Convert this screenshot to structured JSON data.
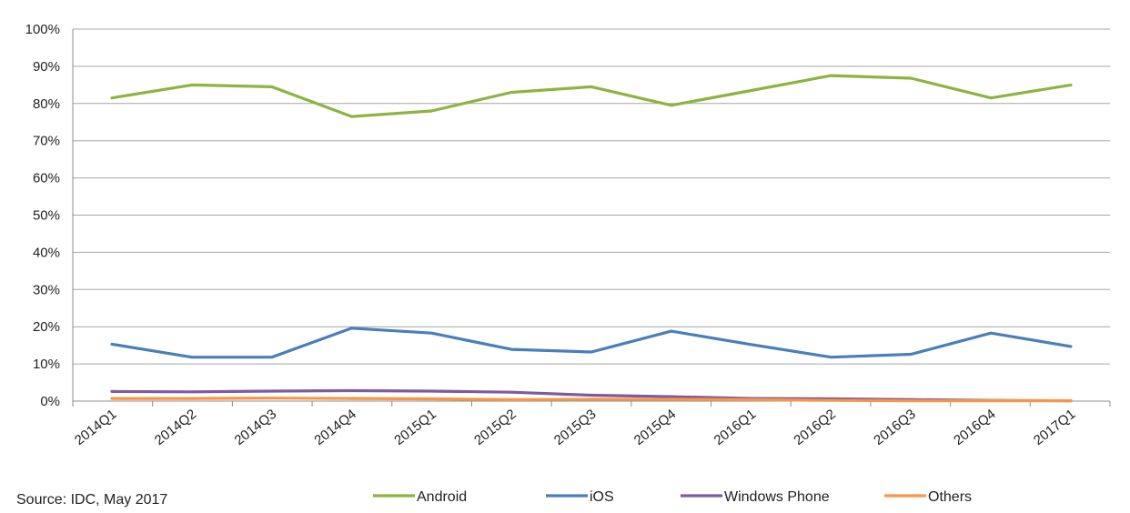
{
  "chart_data": {
    "type": "line",
    "categories": [
      "2014Q1",
      "2014Q2",
      "2014Q3",
      "2014Q4",
      "2015Q1",
      "2015Q2",
      "2015Q3",
      "2015Q4",
      "2016Q1",
      "2016Q2",
      "2016Q3",
      "2016Q4",
      "2017Q1"
    ],
    "ylim": [
      0,
      100
    ],
    "yticks": [
      "0%",
      "10%",
      "20%",
      "30%",
      "40%",
      "50%",
      "60%",
      "70%",
      "80%",
      "90%",
      "100%"
    ],
    "grid": true,
    "legend_position": "bottom",
    "series": [
      {
        "name": "Android",
        "color": "#8DB340",
        "values": [
          81.5,
          85.0,
          84.5,
          76.5,
          78.0,
          83.0,
          84.5,
          79.5,
          83.5,
          87.5,
          86.8,
          81.5,
          85.0
        ]
      },
      {
        "name": "iOS",
        "color": "#4A7EBB",
        "values": [
          15.3,
          11.8,
          11.8,
          19.6,
          18.3,
          13.9,
          13.2,
          18.8,
          15.2,
          11.8,
          12.6,
          18.3,
          14.7
        ]
      },
      {
        "name": "Windows Phone",
        "color": "#7D5AA3",
        "values": [
          2.6,
          2.5,
          2.7,
          2.8,
          2.7,
          2.4,
          1.6,
          1.2,
          0.7,
          0.6,
          0.4,
          0.2,
          0.1
        ]
      },
      {
        "name": "Others",
        "color": "#F79646",
        "values": [
          0.7,
          0.7,
          0.8,
          0.7,
          0.6,
          0.4,
          0.5,
          0.5,
          0.4,
          0.2,
          0.1,
          0.1,
          0.1
        ]
      }
    ]
  },
  "source_text": "Source: IDC, May 2017"
}
